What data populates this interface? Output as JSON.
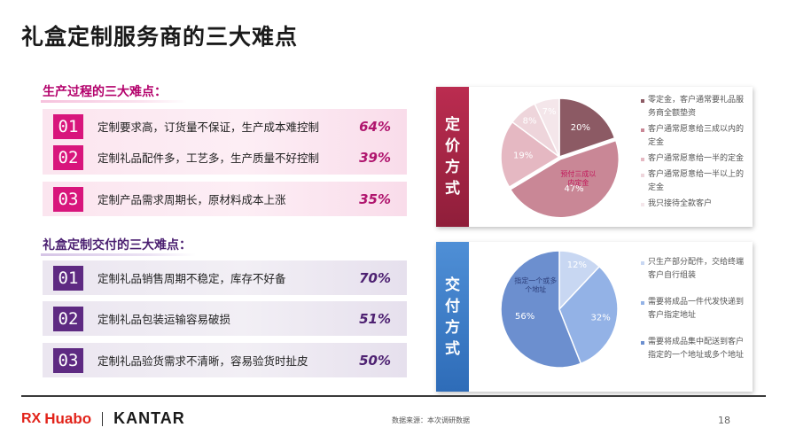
{
  "title": "礼盒定制服务商的三大难点",
  "production": {
    "heading": "生产过程的三大难点：",
    "items": [
      {
        "num": "01",
        "text": "定制要求高，订货量不保证，生产成本难控制",
        "pct": "64%"
      },
      {
        "num": "02",
        "text": "定制礼品配件多，工艺多，生产质量不好控制",
        "pct": "39%"
      },
      {
        "num": "03",
        "text": "定制产品需求周期长，原材料成本上涨",
        "pct": "35%"
      }
    ]
  },
  "delivery": {
    "heading": "礼盒定制交付的三大难点：",
    "items": [
      {
        "num": "01",
        "text": "定制礼品销售周期不稳定，库存不好备",
        "pct": "70%"
      },
      {
        "num": "02",
        "text": "定制礼品包装运输容易破损",
        "pct": "51%"
      },
      {
        "num": "03",
        "text": "定制礼品验货需求不清晰，容易验货时扯皮",
        "pct": "50%"
      }
    ]
  },
  "chart_data": [
    {
      "type": "pie",
      "title": "定价方式",
      "labels": [
        "零定金，客户通常要礼品服务商全额垫资",
        "客户通常愿意给三成以内的定金",
        "客户通常愿意给一半的定金",
        "客户通常愿意给一半以上的定金",
        "我只接待全款客户"
      ],
      "values": [
        20,
        47,
        19,
        8,
        7
      ],
      "value_labels": [
        "20%",
        "47%",
        "19%",
        "8%",
        "7%"
      ],
      "colors": [
        "#8c5a64",
        "#c98796",
        "#e5b8c2",
        "#eed5db",
        "#f4e6ea"
      ],
      "annotation": "预付三成以内定金",
      "annotation_color": "#c2185b"
    },
    {
      "type": "pie",
      "title": "交付方式",
      "labels": [
        "只生产部分配件，交给终端客户自行组装",
        "需要将成品一件代发快递到客户指定地址",
        "需要将成品集中配送到客户指定的一个地址或多个地址"
      ],
      "values": [
        12,
        32,
        56
      ],
      "value_labels": [
        "12%",
        "32%",
        "56%"
      ],
      "colors": [
        "#c8d7f2",
        "#93b2e6",
        "#6c8fcf"
      ],
      "annotation": "指定一个或多个地址",
      "annotation_color": "#2c3e7a"
    }
  ],
  "footer": {
    "rx": "RX",
    "huabo": "Huabo",
    "kantar": "KANTAR",
    "source": "数据来源：本次调研数据",
    "page": "18"
  }
}
